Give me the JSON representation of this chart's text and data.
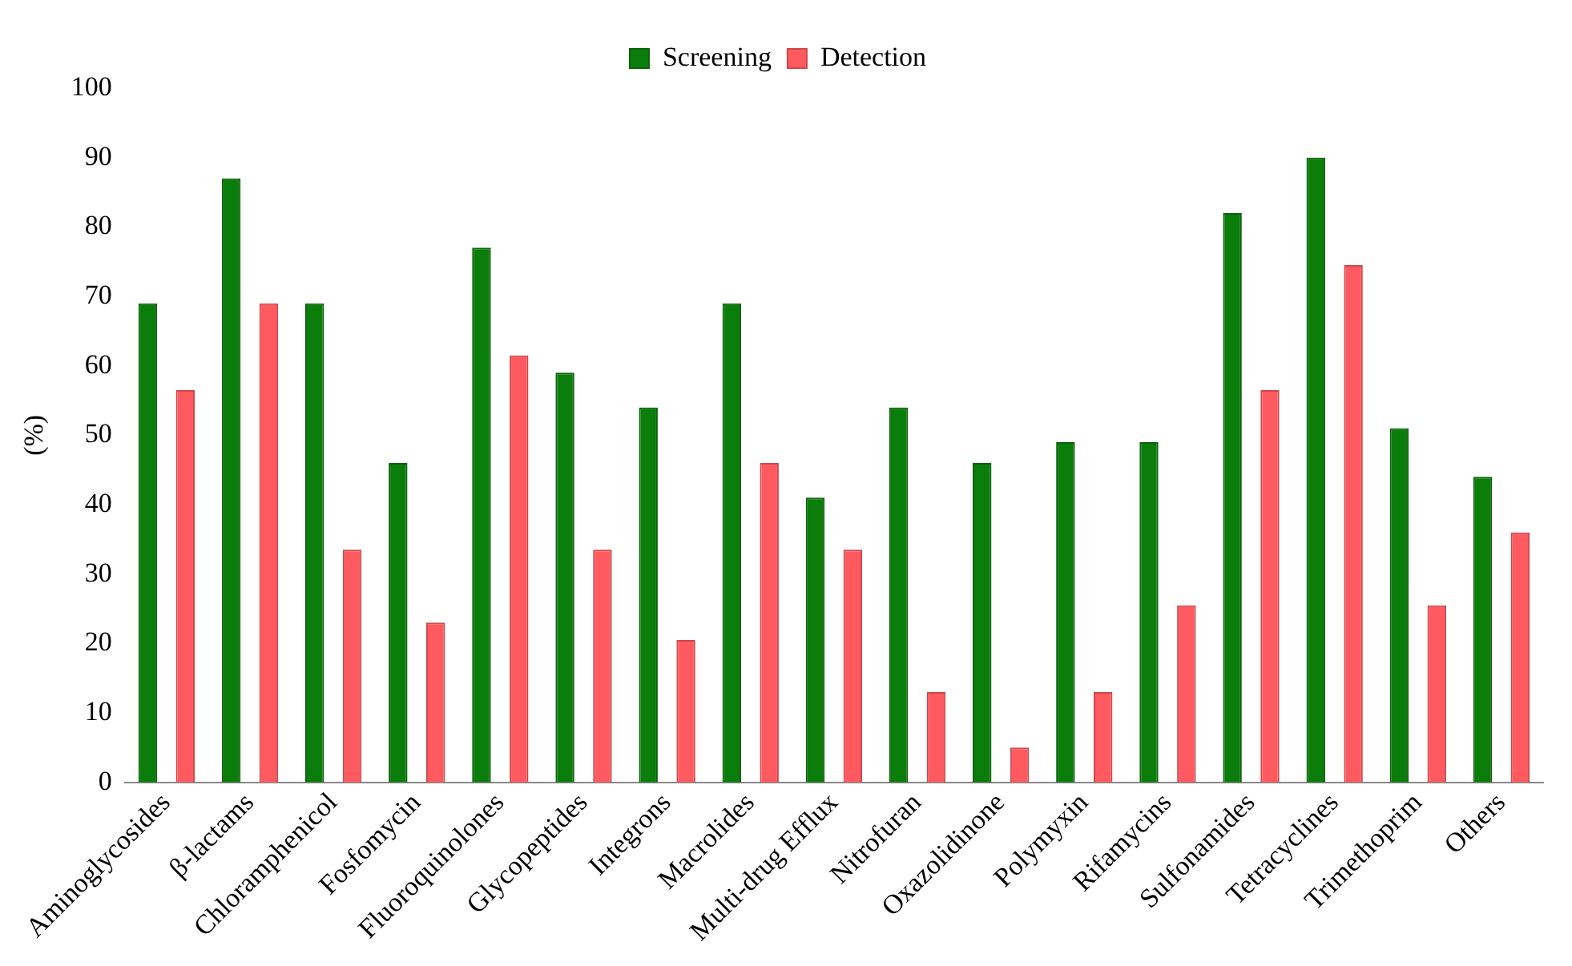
{
  "chart_data": {
    "type": "bar",
    "ylabel": "(%)",
    "categories": [
      "Aminoglycosides",
      "β-lactams",
      "Chloramphenicol",
      "Fosfomycin",
      "Fluoroquinolones",
      "Glycopeptides",
      "Integrons",
      "Macrolides",
      "Multi-drug Efflux",
      "Nitrofuran",
      "Oxazolidinone",
      "Polymyxin",
      "Rifamycins",
      "Sulfonamides",
      "Tetracyclines",
      "Trimethoprim",
      "Others"
    ],
    "series": [
      {
        "name": "Screening",
        "color": "#0a7d0a",
        "values": [
          69,
          87,
          69,
          46,
          77,
          59,
          54,
          69,
          41,
          54,
          46,
          49,
          49,
          82,
          90,
          51,
          44
        ]
      },
      {
        "name": "Detection",
        "color": "#ff5a5f",
        "values": [
          56.5,
          69,
          33.5,
          23,
          61.5,
          33.5,
          20.5,
          46,
          33.5,
          13,
          5,
          13,
          25.5,
          56.5,
          74.5,
          25.5,
          36
        ]
      }
    ],
    "ylim": [
      0,
      100
    ],
    "yticks": [
      0,
      10,
      20,
      30,
      40,
      50,
      60,
      70,
      80,
      90,
      100
    ],
    "grid": false,
    "legend": "top"
  }
}
